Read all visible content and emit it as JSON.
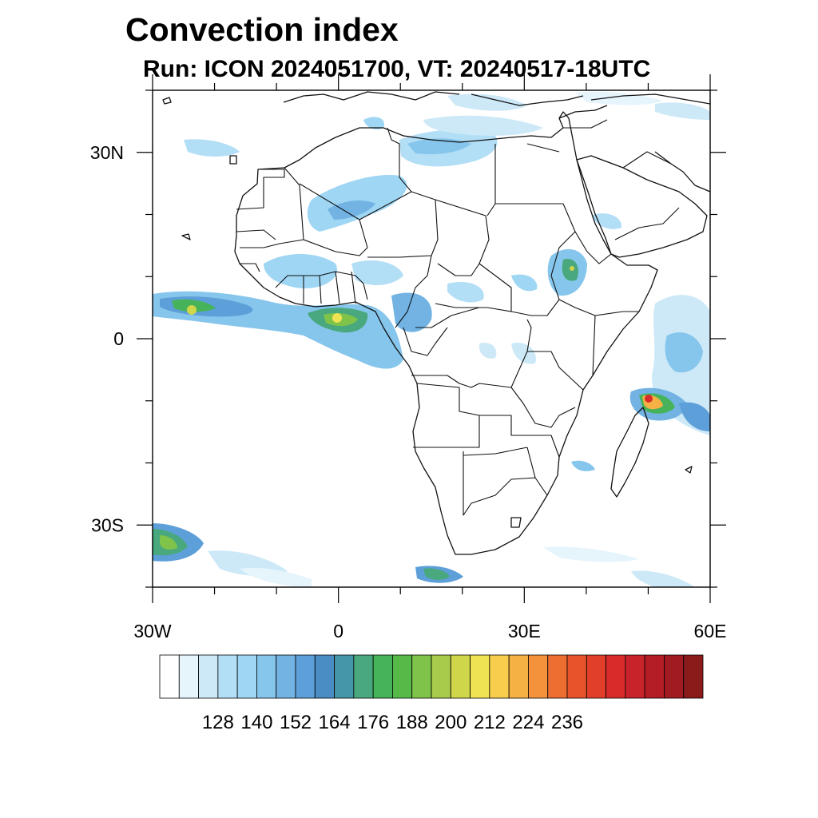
{
  "title": "Convection index",
  "subtitle": "Run: ICON 2024051700,  VT: 20240517-18UTC",
  "map": {
    "region": "Africa",
    "extent": {
      "lon": [
        -30,
        60
      ],
      "lat": [
        -40,
        40
      ]
    },
    "x_ticks": [
      {
        "lon": -30,
        "label": "30W"
      },
      {
        "lon": 0,
        "label": "0"
      },
      {
        "lon": 30,
        "label": "30E"
      },
      {
        "lon": 60,
        "label": "60E"
      }
    ],
    "y_ticks": [
      {
        "lat": 30,
        "label": "30N"
      },
      {
        "lat": 0,
        "label": "0"
      },
      {
        "lat": -30,
        "label": "30S"
      }
    ]
  },
  "colorbar": {
    "colors": [
      "#ffffff",
      "#e6f4fc",
      "#cde9f8",
      "#b2def6",
      "#9ed6f4",
      "#86c6ec",
      "#72b3e4",
      "#5d9fd8",
      "#4a8cc4",
      "#4596a6",
      "#49a87e",
      "#46b35a",
      "#55ba48",
      "#7fc34a",
      "#a8cb4b",
      "#d0d649",
      "#efe353",
      "#f8cd4d",
      "#f6b145",
      "#f3923b",
      "#ee6e32",
      "#e8532b",
      "#e13f2a",
      "#d92c2a",
      "#c8222a",
      "#b41d25",
      "#a11c22",
      "#8b1a1a"
    ],
    "labels": [
      "128",
      "140",
      "152",
      "164",
      "176",
      "188",
      "200",
      "212",
      "224",
      "236"
    ]
  }
}
